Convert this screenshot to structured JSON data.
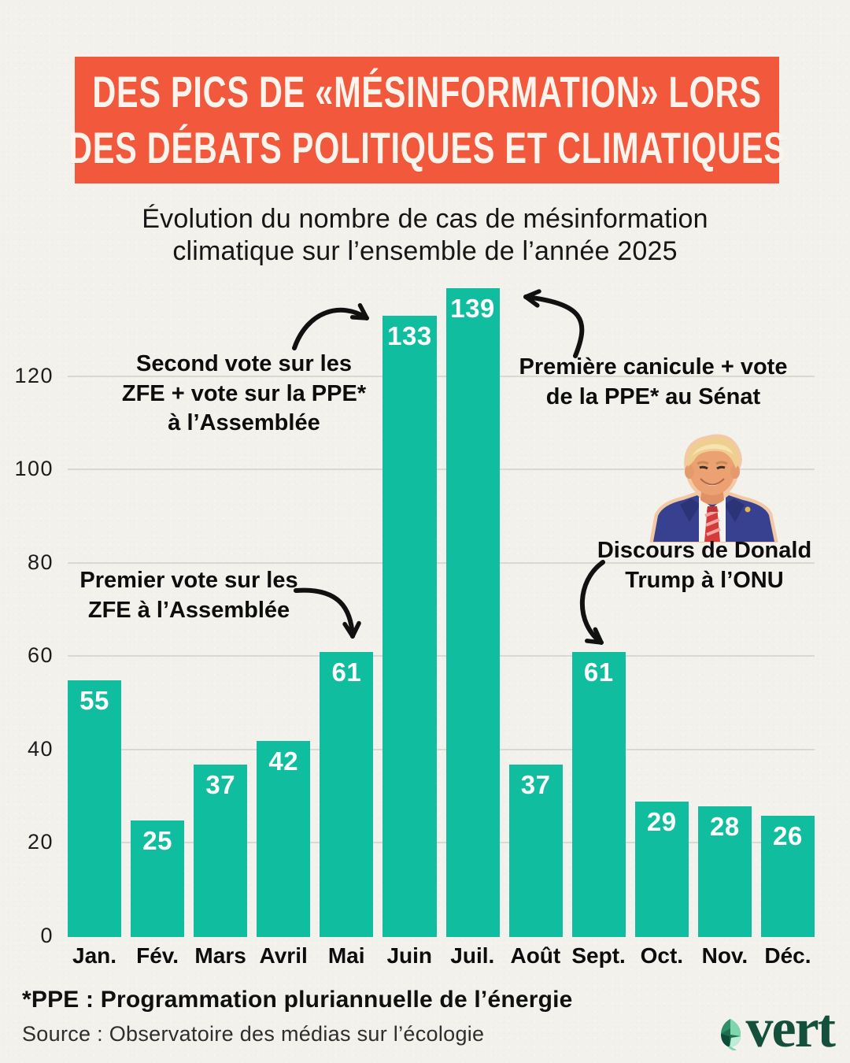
{
  "banner": {
    "line1": "DES PICS DE «MÉSINFORMATION» LORS",
    "line2": "DES DÉBATS POLITIQUES ET CLIMATIQUES"
  },
  "subtitle": {
    "line1": "Évolution du nombre de cas de mésinformation",
    "line2": "climatique sur l’ensemble de l’année 2025"
  },
  "chart_data": {
    "type": "bar",
    "title": "Évolution du nombre de cas de mésinformation climatique sur l’ensemble de l’année 2025",
    "categories": [
      "Jan.",
      "Fév.",
      "Mars",
      "Avril",
      "Mai",
      "Juin",
      "Juil.",
      "Août",
      "Sept.",
      "Oct.",
      "Nov.",
      "Déc."
    ],
    "values": [
      55,
      25,
      37,
      42,
      61,
      133,
      139,
      37,
      61,
      29,
      28,
      26
    ],
    "xlabel": "",
    "ylabel": "",
    "yticks": [
      0,
      20,
      40,
      60,
      80,
      100,
      120
    ],
    "ylim": [
      0,
      140
    ],
    "grid": true,
    "legend": "none",
    "value_labels": "inside-top"
  },
  "annotations": [
    {
      "id": "second-vote",
      "lines": [
        "Second vote sur les",
        "ZFE + vote sur la PPE*",
        "à l’Assemblée"
      ],
      "target": "Juin (133)"
    },
    {
      "id": "premiere-canicule",
      "lines": [
        "Première canicule + vote",
        "de la PPE* au Sénat"
      ],
      "target": "Juil. (139)"
    },
    {
      "id": "premier-vote",
      "lines": [
        "Premier vote sur les",
        "ZFE à l’Assemblée"
      ],
      "target": "Mai (61)"
    },
    {
      "id": "trump-onu",
      "lines": [
        "Discours de Donald",
        "Trump à l’ONU"
      ],
      "target": "Sept. (61)"
    }
  ],
  "footer": {
    "note": "*PPE : Programmation pluriannuelle de l’énergie",
    "source": "Source : Observatoire des médias sur l’écologie",
    "logo_text": "vert"
  },
  "colors": {
    "background": "#F2F1EC",
    "banner": "#F1583C",
    "bar": "#10BD9E",
    "grid": "#D9D8D1",
    "value_label": "#FFFFFF",
    "logo_green": "#14503C",
    "arrow": "#111111"
  }
}
